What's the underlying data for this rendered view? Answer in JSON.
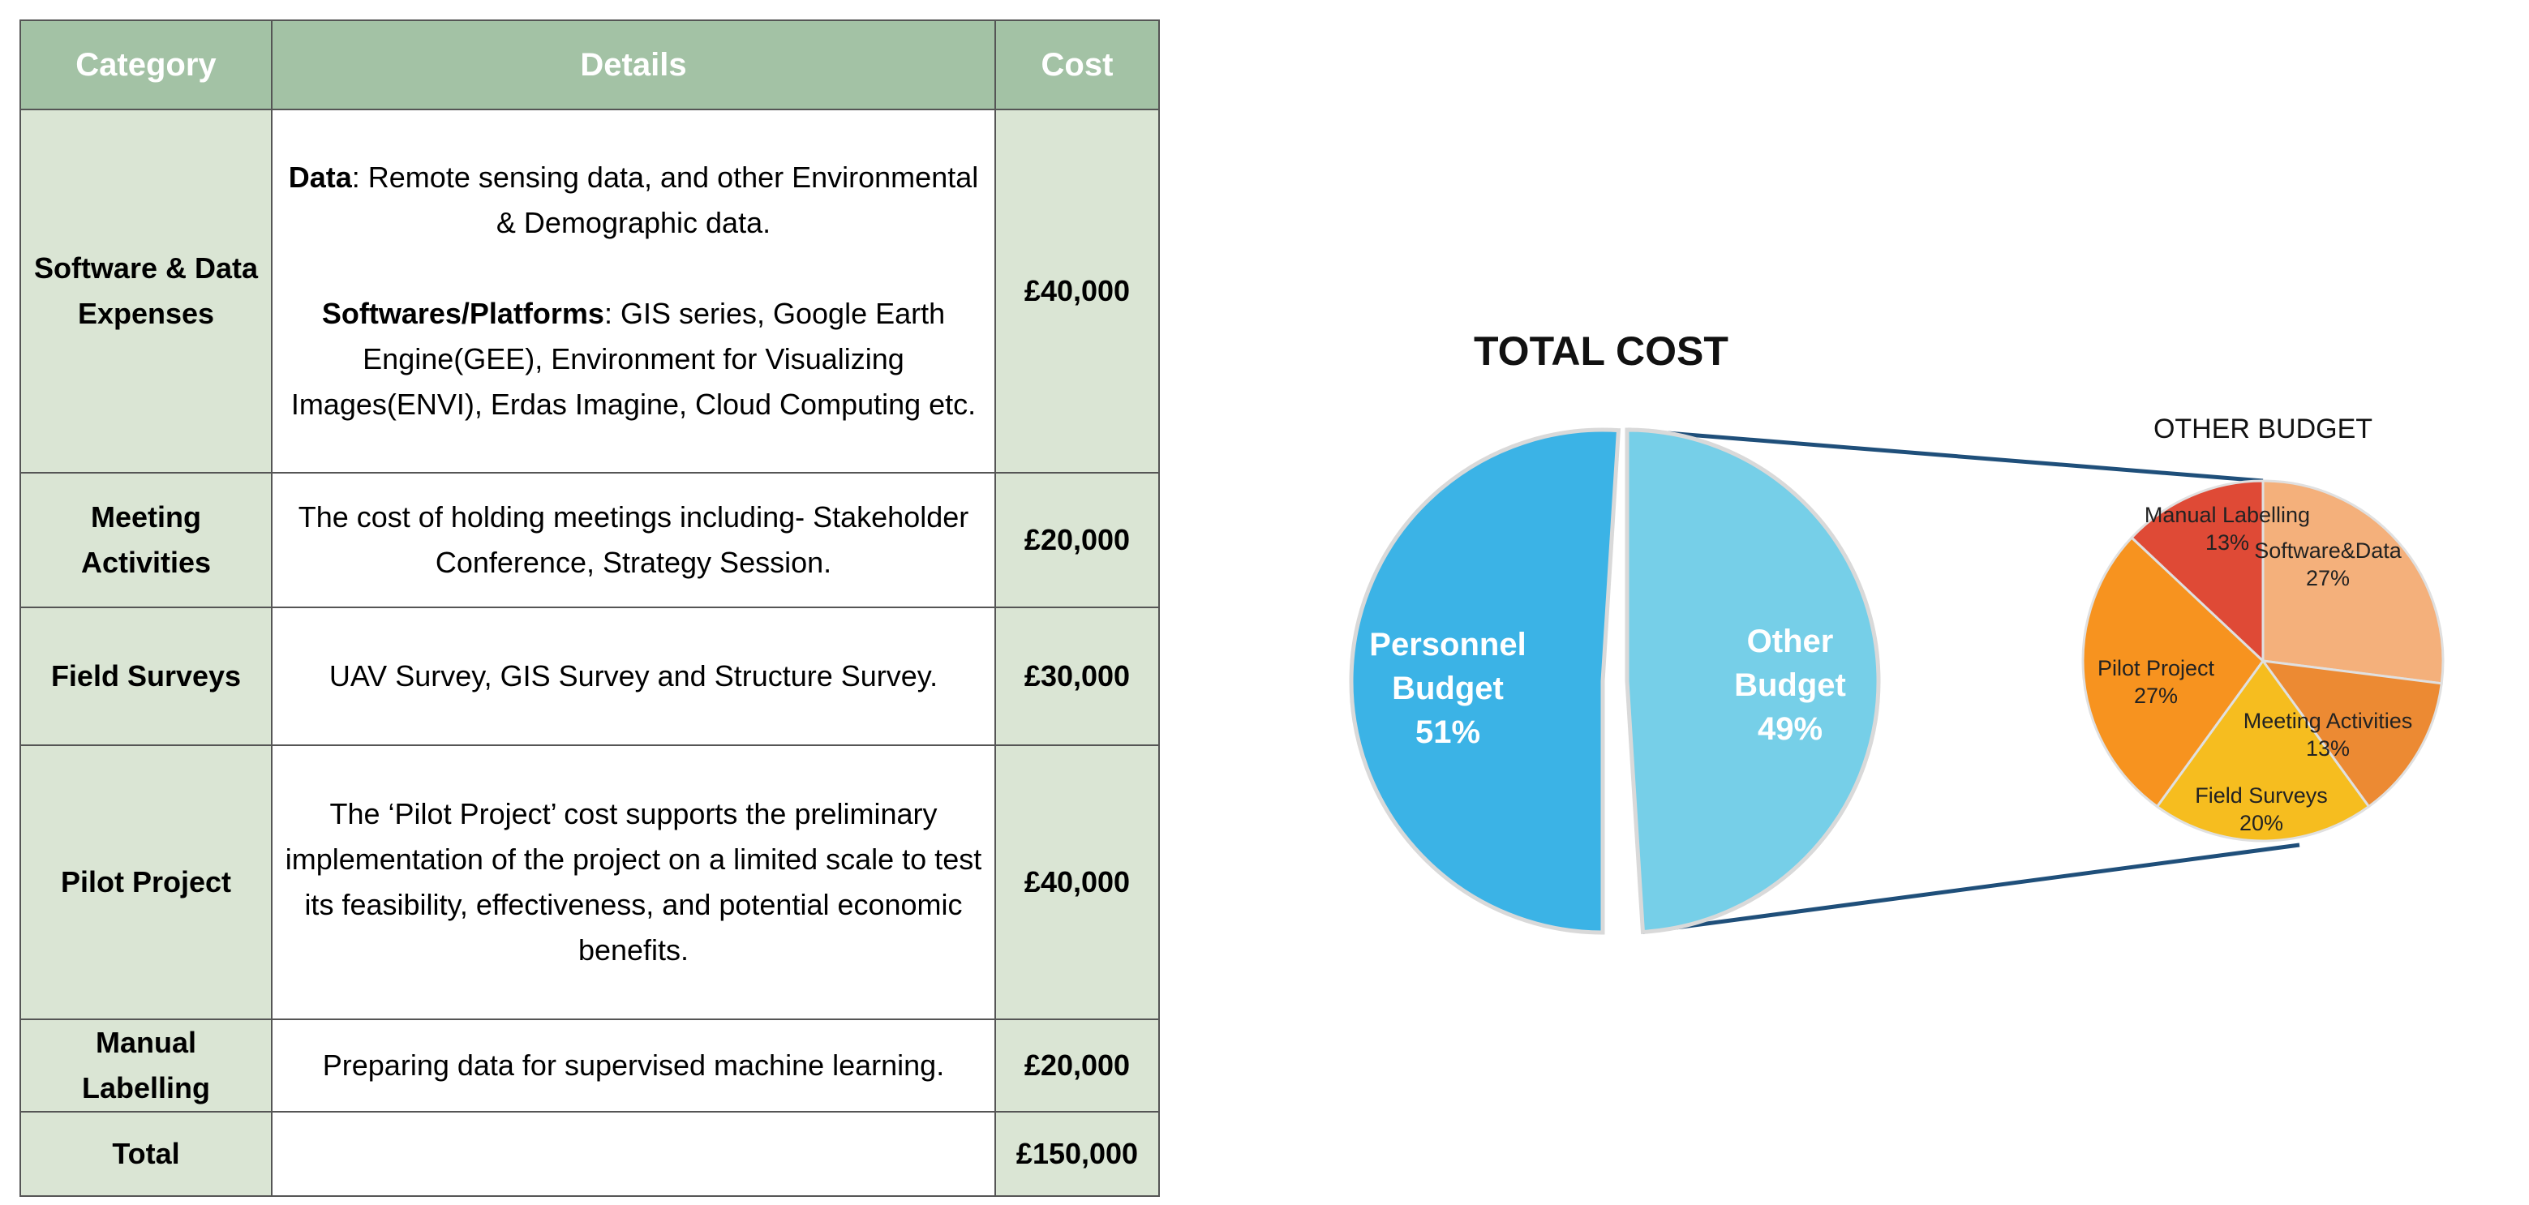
{
  "table": {
    "headers": {
      "category": "Category",
      "details": "Details",
      "cost": "Cost"
    },
    "rows": [
      {
        "category": "Software & Data Expenses",
        "details": [
          {
            "bold": "Data",
            "text": ": Remote sensing data, and other Environmental & Demographic data."
          },
          {
            "bold": "Softwares/Platforms",
            "text": ": GIS series, Google Earth Engine(GEE), Environment for Visualizing Images(ENVI), Erdas Imagine, Cloud Computing etc."
          }
        ],
        "cost": "£40,000"
      },
      {
        "category": "Meeting Activities",
        "details": [
          {
            "bold": "",
            "text": "The cost of holding meetings including- Stakeholder Conference, Strategy Session."
          }
        ],
        "cost": "£20,000"
      },
      {
        "category": "Field Surveys",
        "details": [
          {
            "bold": "",
            "text": "UAV Survey, GIS Survey and Structure Survey."
          }
        ],
        "cost": "£30,000"
      },
      {
        "category": "Pilot Project",
        "details": [
          {
            "bold": "",
            "text": "The ‘Pilot Project’ cost supports the preliminary implementation of the project on a limited scale to test its feasibility, effectiveness, and potential economic benefits."
          }
        ],
        "cost": "£40,000"
      },
      {
        "category": "Manual Labelling",
        "details": [
          {
            "bold": "",
            "text": "Preparing data for supervised machine learning."
          }
        ],
        "cost": "£20,000"
      },
      {
        "category": "Total",
        "details": [],
        "cost": "£150,000"
      }
    ]
  },
  "chart_data": [
    {
      "type": "pie",
      "title": "TOTAL COST",
      "slices": [
        {
          "name": "Personnel Budget",
          "label_lines": [
            "Personnel",
            "Budget"
          ],
          "value": 51,
          "pct_label": "51%",
          "color": "#3bb3e6"
        },
        {
          "name": "Other Budget",
          "label_lines": [
            "Other",
            "Budget"
          ],
          "value": 49,
          "pct_label": "49%",
          "color": "#76cfe8"
        }
      ],
      "exploded": "Other Budget",
      "connector_color": "#1f4f7a"
    },
    {
      "type": "pie",
      "title": "OTHER BUDGET",
      "slices": [
        {
          "name": "Software&Data",
          "value": 27,
          "pct_label": "27%",
          "color": "#f4b07b"
        },
        {
          "name": "Meeting Activities",
          "value": 13,
          "pct_label": "13%",
          "color": "#ec8a33"
        },
        {
          "name": "Field Surveys",
          "value": 20,
          "pct_label": "20%",
          "color": "#f6bd1f"
        },
        {
          "name": "Pilot Project",
          "value": 27,
          "pct_label": "27%",
          "color": "#f7931f"
        },
        {
          "name": "Manual Labelling",
          "value": 13,
          "pct_label": "13%",
          "color": "#df4a36"
        }
      ]
    }
  ]
}
